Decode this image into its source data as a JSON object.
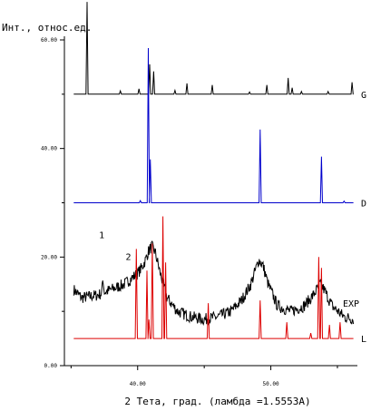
{
  "chart_data": {
    "type": "line",
    "ylabel": "Инт., относ.ед.",
    "xlabel": "2 Тета, град. (ламбда =1.5553А)",
    "xlim": [
      34.5,
      56.5
    ],
    "ylim": [
      0,
      60
    ],
    "x_ticks": [
      40,
      50
    ],
    "x_tick_labels": [
      "40.00",
      "50.00"
    ],
    "y_ticks": [
      0,
      20,
      40,
      60
    ],
    "y_tick_labels": [
      "0.00",
      "20.00",
      "40.00",
      "60.00"
    ],
    "grid": false,
    "series": [
      {
        "name": "G",
        "color": "#000000",
        "baseline": 50,
        "peaks": [
          [
            36.2,
            17
          ],
          [
            38.7,
            0.6
          ],
          [
            40.1,
            1.0
          ],
          [
            40.9,
            5.5
          ],
          [
            41.2,
            4.2
          ],
          [
            42.8,
            0.7
          ],
          [
            43.7,
            2.0
          ],
          [
            45.6,
            1.7
          ],
          [
            48.4,
            0.4
          ],
          [
            49.7,
            1.7
          ],
          [
            51.3,
            3.0
          ],
          [
            51.6,
            1.2
          ],
          [
            52.3,
            0.5
          ],
          [
            54.3,
            0.5
          ],
          [
            56.1,
            2.2
          ]
        ]
      },
      {
        "name": "D",
        "color": "#0000cc",
        "baseline": 30,
        "peaks": [
          [
            40.2,
            0.4
          ],
          [
            40.8,
            28.5
          ],
          [
            40.95,
            8
          ],
          [
            49.2,
            13.5
          ],
          [
            53.8,
            8.5
          ],
          [
            55.5,
            0.3
          ]
        ]
      },
      {
        "name": "EXP",
        "color": "#000000",
        "noise": true,
        "background": [
          [
            34.8,
            22
          ],
          [
            35.2,
            14
          ],
          [
            35.8,
            12.5
          ],
          [
            37,
            13
          ],
          [
            38,
            14
          ],
          [
            39,
            15
          ],
          [
            39.5,
            16
          ],
          [
            40,
            17
          ],
          [
            40.3,
            18
          ],
          [
            40.6,
            19.5
          ],
          [
            40.8,
            21
          ],
          [
            41.05,
            22
          ],
          [
            41.3,
            21
          ],
          [
            41.7,
            17
          ],
          [
            42.2,
            12.5
          ],
          [
            43,
            10
          ],
          [
            44,
            9
          ],
          [
            45,
            8.5
          ],
          [
            46,
            9
          ],
          [
            47,
            10
          ],
          [
            47.8,
            12
          ],
          [
            48.5,
            15
          ],
          [
            48.9,
            18
          ],
          [
            49.1,
            19.5
          ],
          [
            49.4,
            18.5
          ],
          [
            49.8,
            15
          ],
          [
            50.5,
            11
          ],
          [
            51.5,
            10
          ],
          [
            52.5,
            11
          ],
          [
            53.2,
            13
          ],
          [
            53.7,
            15
          ],
          [
            54.0,
            14
          ],
          [
            54.6,
            11
          ],
          [
            55.5,
            9
          ],
          [
            56.3,
            8.5
          ]
        ],
        "spikes": [
          [
            37.4,
            2.5
          ]
        ]
      },
      {
        "name": "L",
        "color": "#dd0000",
        "baseline": 5,
        "peaks": [
          [
            39.9,
            16.5
          ],
          [
            40.7,
            12.5
          ],
          [
            40.85,
            3.5
          ],
          [
            41.1,
            17.5
          ],
          [
            41.9,
            22.5
          ],
          [
            42.1,
            14
          ],
          [
            45.3,
            6.5
          ],
          [
            49.2,
            7
          ],
          [
            51.2,
            3
          ],
          [
            53.0,
            1
          ],
          [
            53.6,
            15
          ],
          [
            53.8,
            13
          ],
          [
            54.4,
            2.5
          ],
          [
            55.2,
            3
          ]
        ]
      }
    ],
    "annotations": [
      {
        "text": "1",
        "x": 37.3,
        "y": 23.5
      },
      {
        "text": "2",
        "x": 39.3,
        "y": 19.5
      }
    ]
  }
}
